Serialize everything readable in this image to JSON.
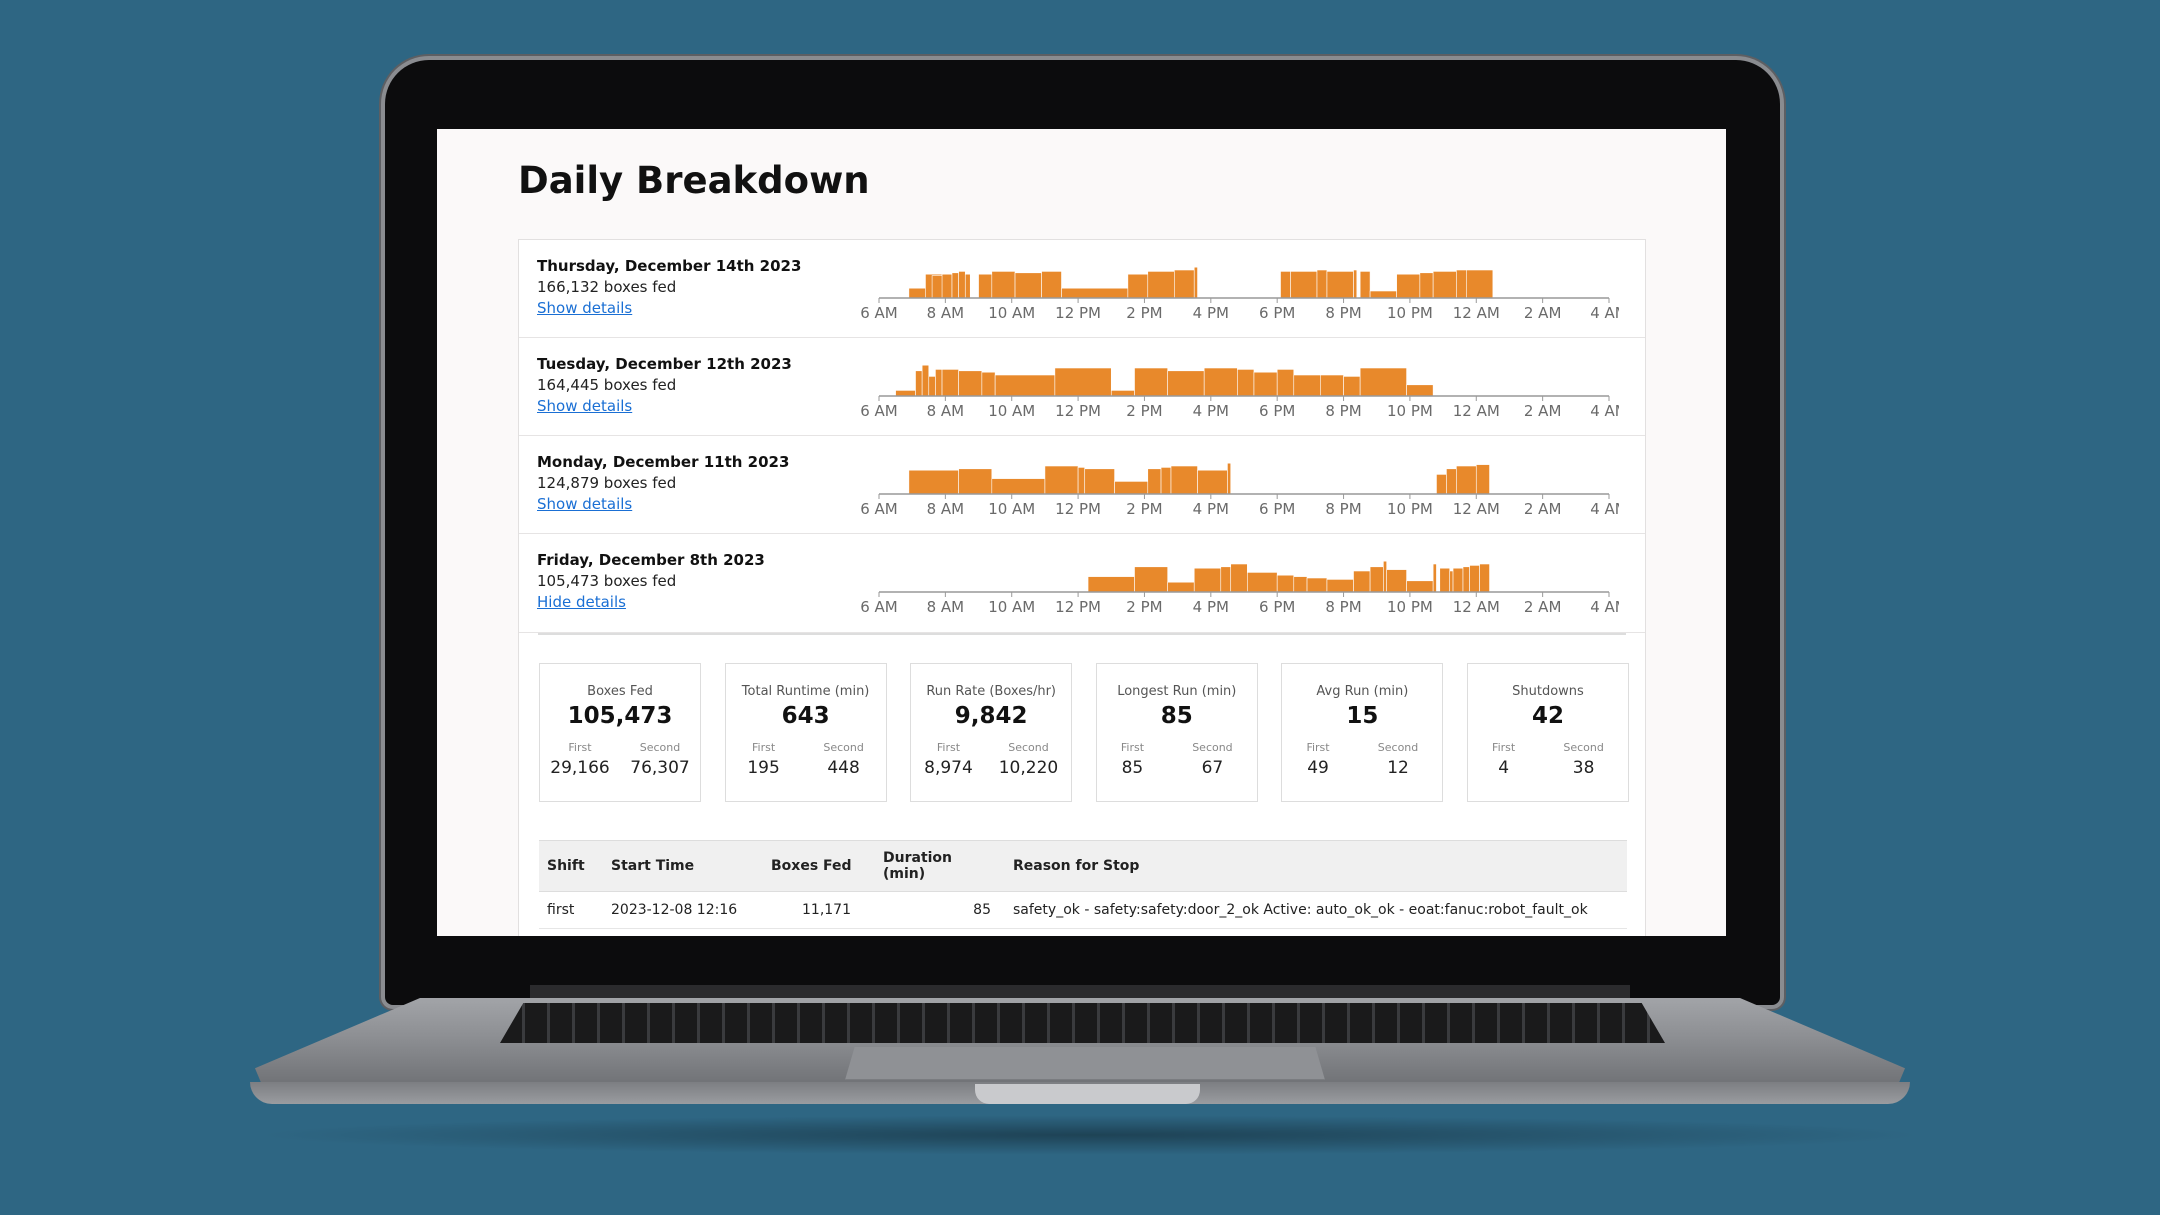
{
  "page": {
    "title": "Daily Breakdown"
  },
  "days": [
    {
      "date": "Thursday, December 14th 2023",
      "boxes": "166,132 boxes fed",
      "toggle": "Show details",
      "activity": [
        [
          0.9,
          1.8,
          0.35
        ],
        [
          1.4,
          1.9,
          0.85
        ],
        [
          1.6,
          2.1,
          0.8
        ],
        [
          1.9,
          2.2,
          0.85
        ],
        [
          2.2,
          2.4,
          0.9
        ],
        [
          2.4,
          2.6,
          0.95
        ],
        [
          2.6,
          2.75,
          0.85
        ],
        [
          3.0,
          3.4,
          0.85
        ],
        [
          3.4,
          4.1,
          0.95
        ],
        [
          4.1,
          4.9,
          0.9
        ],
        [
          4.9,
          5.5,
          0.95
        ],
        [
          5.5,
          7.5,
          0.35
        ],
        [
          7.5,
          8.1,
          0.85
        ],
        [
          8.1,
          8.9,
          0.95
        ],
        [
          8.9,
          9.5,
          1.0
        ],
        [
          9.5,
          9.6,
          1.1
        ],
        [
          12.1,
          12.4,
          0.95
        ],
        [
          12.4,
          13.2,
          0.95
        ],
        [
          13.2,
          13.5,
          1.0
        ],
        [
          13.5,
          14.3,
          0.95
        ],
        [
          14.3,
          14.4,
          1.0
        ],
        [
          14.5,
          14.8,
          0.95
        ],
        [
          14.8,
          15.6,
          0.25
        ],
        [
          15.6,
          16.3,
          0.85
        ],
        [
          16.3,
          16.7,
          0.9
        ],
        [
          16.7,
          17.4,
          0.95
        ],
        [
          17.4,
          17.7,
          1.0
        ],
        [
          17.7,
          18.5,
          1.0
        ]
      ]
    },
    {
      "date": "Tuesday, December 12th 2023",
      "boxes": "164,445 boxes fed",
      "toggle": "Show details",
      "activity": [
        [
          0.5,
          1.1,
          0.2
        ],
        [
          1.1,
          1.3,
          0.9
        ],
        [
          1.3,
          1.5,
          1.1
        ],
        [
          1.5,
          1.7,
          0.7
        ],
        [
          1.7,
          1.9,
          0.95
        ],
        [
          1.9,
          2.4,
          0.95
        ],
        [
          2.4,
          3.1,
          0.9
        ],
        [
          3.1,
          3.5,
          0.85
        ],
        [
          3.5,
          5.3,
          0.75
        ],
        [
          5.3,
          7.0,
          1.0
        ],
        [
          7.0,
          7.7,
          0.2
        ],
        [
          7.7,
          8.7,
          1.0
        ],
        [
          8.7,
          9.8,
          0.9
        ],
        [
          9.8,
          10.8,
          1.0
        ],
        [
          10.8,
          11.3,
          0.95
        ],
        [
          11.3,
          12.0,
          0.85
        ],
        [
          12.0,
          12.5,
          0.95
        ],
        [
          12.5,
          13.3,
          0.75
        ],
        [
          13.3,
          14.0,
          0.75
        ],
        [
          14.0,
          14.5,
          0.7
        ],
        [
          14.5,
          15.9,
          1.0
        ],
        [
          15.9,
          16.7,
          0.4
        ]
      ]
    },
    {
      "date": "Monday, December 11th 2023",
      "boxes": "124,879 boxes fed",
      "toggle": "Show details",
      "activity": [
        [
          0.9,
          2.4,
          0.85
        ],
        [
          2.4,
          3.4,
          0.9
        ],
        [
          3.4,
          5.0,
          0.55
        ],
        [
          5.0,
          6.0,
          1.0
        ],
        [
          6.0,
          6.2,
          0.95
        ],
        [
          6.2,
          7.1,
          0.9
        ],
        [
          7.1,
          8.1,
          0.45
        ],
        [
          8.1,
          8.5,
          0.9
        ],
        [
          8.5,
          8.8,
          0.95
        ],
        [
          8.8,
          9.6,
          1.0
        ],
        [
          9.6,
          10.5,
          0.85
        ],
        [
          10.5,
          10.6,
          1.1
        ],
        [
          16.8,
          17.1,
          0.7
        ],
        [
          17.1,
          17.4,
          0.9
        ],
        [
          17.4,
          18.0,
          1.0
        ],
        [
          18.0,
          18.4,
          1.05
        ]
      ]
    },
    {
      "date": "Friday, December 8th 2023",
      "boxes": "105,473 boxes fed",
      "toggle": "Hide details",
      "activity": [
        [
          6.3,
          7.7,
          0.55
        ],
        [
          7.7,
          8.7,
          0.9
        ],
        [
          8.7,
          9.5,
          0.35
        ],
        [
          9.5,
          10.3,
          0.85
        ],
        [
          10.3,
          10.6,
          0.9
        ],
        [
          10.6,
          11.1,
          1.0
        ],
        [
          11.1,
          12.0,
          0.7
        ],
        [
          12.0,
          12.5,
          0.6
        ],
        [
          12.5,
          12.9,
          0.55
        ],
        [
          12.9,
          13.5,
          0.5
        ],
        [
          13.5,
          14.3,
          0.45
        ],
        [
          14.3,
          14.8,
          0.75
        ],
        [
          14.8,
          15.2,
          0.9
        ],
        [
          15.2,
          15.3,
          1.1
        ],
        [
          15.3,
          15.9,
          0.8
        ],
        [
          15.9,
          16.7,
          0.4
        ],
        [
          16.7,
          16.8,
          1.0
        ],
        [
          16.9,
          17.2,
          0.85
        ],
        [
          17.2,
          17.3,
          0.75
        ],
        [
          17.3,
          17.6,
          0.85
        ],
        [
          17.6,
          17.8,
          0.9
        ],
        [
          17.8,
          18.1,
          0.95
        ],
        [
          18.1,
          18.4,
          1.0
        ]
      ]
    }
  ],
  "axis": {
    "ticks": [
      "6 AM",
      "8 AM",
      "10 AM",
      "12 PM",
      "2 PM",
      "4 PM",
      "6 PM",
      "8 PM",
      "10 PM",
      "12 AM",
      "2 AM",
      "4 AM"
    ]
  },
  "stats": [
    {
      "title": "Boxes Fed",
      "value": "105,473",
      "first_label": "First",
      "first": "29,166",
      "second_label": "Second",
      "second": "76,307"
    },
    {
      "title": "Total Runtime (min)",
      "value": "643",
      "first_label": "First",
      "first": "195",
      "second_label": "Second",
      "second": "448"
    },
    {
      "title": "Run Rate (Boxes/hr)",
      "value": "9,842",
      "first_label": "First",
      "first": "8,974",
      "second_label": "Second",
      "second": "10,220"
    },
    {
      "title": "Longest Run (min)",
      "value": "85",
      "first_label": "First",
      "first": "85",
      "second_label": "Second",
      "second": "67"
    },
    {
      "title": "Avg Run (min)",
      "value": "15",
      "first_label": "First",
      "first": "49",
      "second_label": "Second",
      "second": "12"
    },
    {
      "title": "Shutdowns",
      "value": "42",
      "first_label": "First",
      "first": "4",
      "second_label": "Second",
      "second": "38"
    }
  ],
  "table": {
    "headers": [
      "Shift",
      "Start Time",
      "Boxes Fed",
      "Duration (min)",
      "Reason for Stop"
    ],
    "rows": [
      [
        "first",
        "2023-12-08 12:16",
        "11,171",
        "85",
        "safety_ok - safety:safety:door_2_ok Active: auto_ok_ok - eoat:fanuc:robot_fault_ok"
      ]
    ]
  },
  "colors": {
    "bar": "#e8892b",
    "link": "#1a6fd4",
    "background": "#2e6683"
  }
}
